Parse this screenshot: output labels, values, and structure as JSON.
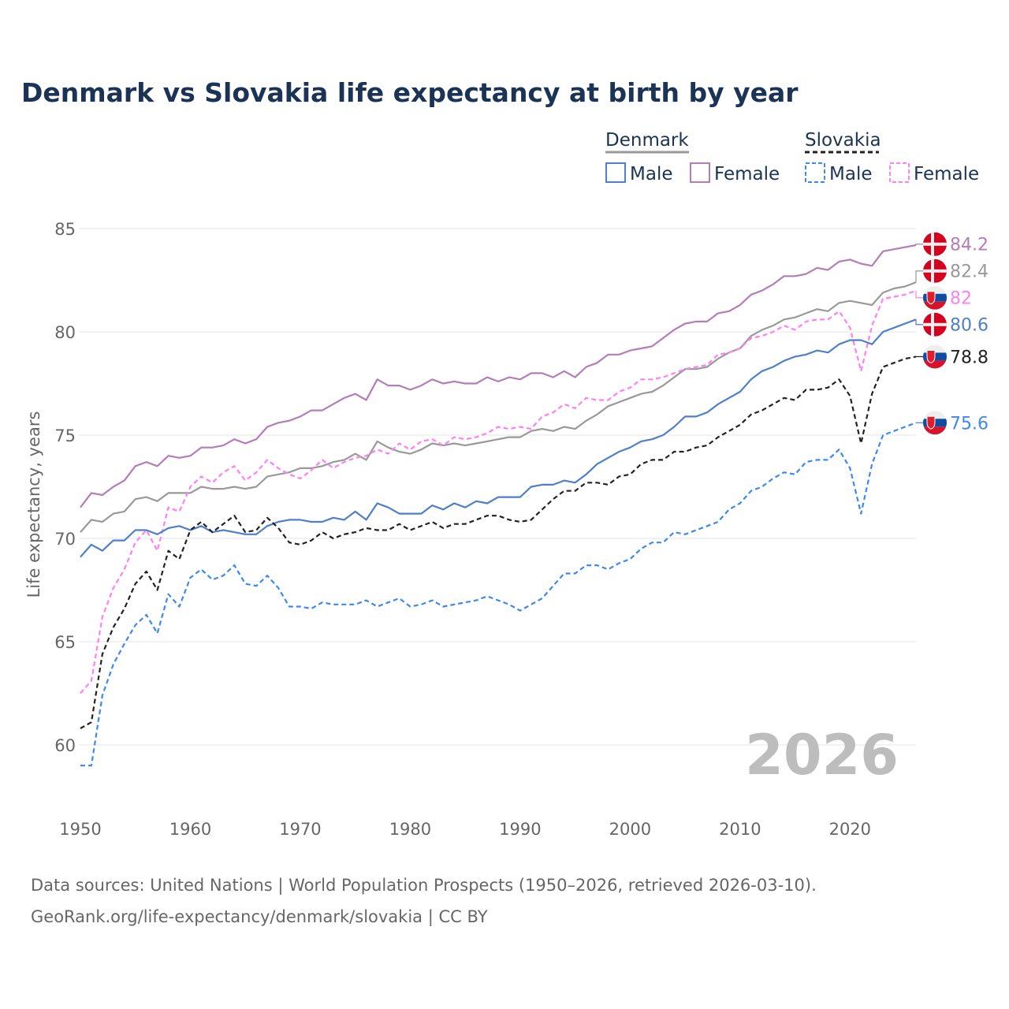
{
  "chart_data": {
    "type": "line",
    "title": "Denmark vs Slovakia life expectancy at birth by year",
    "xlabel": "",
    "ylabel": "Life expectancy, years",
    "xlim": [
      1950,
      2026
    ],
    "ylim": [
      58,
      87
    ],
    "x_ticks": [
      1950,
      1960,
      1970,
      1980,
      1990,
      2000,
      2010,
      2020
    ],
    "y_ticks": [
      60,
      65,
      70,
      75,
      80,
      85
    ],
    "grid": true,
    "legend_placement": "top-right",
    "legend": {
      "groups": [
        {
          "name": "Denmark",
          "items": [
            "Male",
            "Female"
          ]
        },
        {
          "name": "Slovakia",
          "items": [
            "Male",
            "Female"
          ]
        }
      ]
    },
    "year_watermark": "2026",
    "x_start": 1950,
    "series": [
      {
        "name": "Denmark Female",
        "country": "Denmark",
        "color": "#b47cb8",
        "dashed": false,
        "end_label": "84.2",
        "values": [
          71.5,
          72.2,
          72.1,
          72.5,
          72.8,
          73.5,
          73.7,
          73.5,
          74.0,
          73.9,
          74.0,
          74.4,
          74.4,
          74.5,
          74.8,
          74.6,
          74.8,
          75.4,
          75.6,
          75.7,
          75.9,
          76.2,
          76.2,
          76.5,
          76.8,
          77.0,
          76.7,
          77.7,
          77.4,
          77.4,
          77.2,
          77.4,
          77.7,
          77.5,
          77.6,
          77.5,
          77.5,
          77.8,
          77.6,
          77.8,
          77.7,
          78.0,
          78.0,
          77.8,
          78.1,
          77.8,
          78.3,
          78.5,
          78.9,
          78.9,
          79.1,
          79.2,
          79.3,
          79.7,
          80.1,
          80.4,
          80.5,
          80.5,
          80.9,
          81.0,
          81.3,
          81.8,
          82.0,
          82.3,
          82.7,
          82.7,
          82.8,
          83.1,
          83.0,
          83.4,
          83.5,
          83.3,
          83.2,
          83.9,
          84.0,
          84.1,
          84.2
        ]
      },
      {
        "name": "Denmark",
        "country": "Denmark",
        "color": "#999999",
        "dashed": false,
        "end_label": "82.4",
        "values": [
          70.3,
          70.9,
          70.8,
          71.2,
          71.3,
          71.9,
          72.0,
          71.8,
          72.2,
          72.2,
          72.2,
          72.5,
          72.4,
          72.4,
          72.5,
          72.4,
          72.5,
          73.0,
          73.1,
          73.2,
          73.4,
          73.4,
          73.5,
          73.7,
          73.8,
          74.1,
          73.8,
          74.7,
          74.4,
          74.2,
          74.1,
          74.3,
          74.6,
          74.5,
          74.6,
          74.5,
          74.6,
          74.7,
          74.8,
          74.9,
          74.9,
          75.2,
          75.3,
          75.2,
          75.4,
          75.3,
          75.7,
          76.0,
          76.4,
          76.6,
          76.8,
          77.0,
          77.1,
          77.4,
          77.8,
          78.2,
          78.2,
          78.3,
          78.7,
          79.0,
          79.2,
          79.8,
          80.1,
          80.3,
          80.6,
          80.7,
          80.9,
          81.1,
          81.0,
          81.4,
          81.5,
          81.4,
          81.3,
          81.9,
          82.1,
          82.2,
          82.4
        ]
      },
      {
        "name": "Slovakia Female",
        "country": "Slovakia",
        "color": "#ff80f2",
        "dashed": true,
        "end_label": "82",
        "values": [
          62.5,
          63.1,
          66.2,
          67.6,
          68.5,
          69.8,
          70.4,
          69.4,
          71.5,
          71.3,
          72.5,
          73.0,
          72.7,
          73.2,
          73.5,
          72.8,
          73.2,
          73.8,
          73.4,
          73.1,
          72.9,
          73.3,
          73.8,
          73.4,
          73.7,
          73.9,
          74.0,
          74.3,
          74.1,
          74.6,
          74.3,
          74.7,
          74.8,
          74.5,
          74.9,
          74.8,
          74.9,
          75.1,
          75.4,
          75.3,
          75.4,
          75.3,
          75.9,
          76.1,
          76.5,
          76.3,
          76.8,
          76.7,
          76.7,
          77.1,
          77.3,
          77.7,
          77.7,
          77.8,
          78.0,
          78.2,
          78.3,
          78.4,
          78.9,
          79.0,
          79.2,
          79.7,
          79.8,
          80.0,
          80.3,
          80.1,
          80.5,
          80.6,
          80.6,
          81.0,
          80.2,
          78.1,
          80.3,
          81.6,
          81.7,
          81.8,
          82.0
        ]
      },
      {
        "name": "Denmark Male",
        "country": "Denmark",
        "color": "#4e7fcc",
        "dashed": false,
        "end_label": "80.6",
        "values": [
          69.1,
          69.7,
          69.4,
          69.9,
          69.9,
          70.4,
          70.4,
          70.2,
          70.5,
          70.6,
          70.4,
          70.6,
          70.3,
          70.4,
          70.3,
          70.2,
          70.2,
          70.6,
          70.8,
          70.9,
          70.9,
          70.8,
          70.8,
          71.0,
          70.9,
          71.3,
          70.9,
          71.7,
          71.5,
          71.2,
          71.2,
          71.2,
          71.6,
          71.4,
          71.7,
          71.5,
          71.8,
          71.7,
          72.0,
          72.0,
          72.0,
          72.5,
          72.6,
          72.6,
          72.8,
          72.7,
          73.1,
          73.6,
          73.9,
          74.2,
          74.4,
          74.7,
          74.8,
          75.0,
          75.4,
          75.9,
          75.9,
          76.1,
          76.5,
          76.8,
          77.1,
          77.7,
          78.1,
          78.3,
          78.6,
          78.8,
          78.9,
          79.1,
          79.0,
          79.4,
          79.6,
          79.6,
          79.4,
          80.0,
          80.2,
          80.4,
          80.6
        ]
      },
      {
        "name": "Slovakia",
        "country": "Slovakia",
        "color": "#222222",
        "dashed": true,
        "end_label": "78.8",
        "values": [
          60.8,
          61.1,
          64.4,
          65.7,
          66.6,
          67.8,
          68.4,
          67.5,
          69.4,
          69.0,
          70.4,
          70.8,
          70.3,
          70.7,
          71.1,
          70.3,
          70.4,
          71.0,
          70.5,
          69.8,
          69.7,
          69.9,
          70.3,
          70.0,
          70.2,
          70.3,
          70.5,
          70.4,
          70.4,
          70.7,
          70.4,
          70.6,
          70.8,
          70.5,
          70.7,
          70.7,
          70.9,
          71.1,
          71.1,
          70.9,
          70.8,
          70.9,
          71.4,
          71.9,
          72.3,
          72.3,
          72.7,
          72.7,
          72.6,
          73.0,
          73.1,
          73.6,
          73.8,
          73.8,
          74.2,
          74.2,
          74.4,
          74.5,
          74.9,
          75.2,
          75.5,
          76.0,
          76.2,
          76.5,
          76.8,
          76.7,
          77.2,
          77.2,
          77.3,
          77.7,
          76.9,
          74.6,
          77.0,
          78.3,
          78.5,
          78.7,
          78.8
        ]
      },
      {
        "name": "Slovakia Male",
        "country": "Slovakia",
        "color": "#3d88f2",
        "dashed": true,
        "end_label": "75.6",
        "values": [
          59.0,
          59.0,
          62.4,
          63.9,
          64.9,
          65.8,
          66.3,
          65.4,
          67.3,
          66.7,
          68.1,
          68.5,
          68.0,
          68.2,
          68.7,
          67.8,
          67.7,
          68.2,
          67.6,
          66.7,
          66.7,
          66.6,
          66.9,
          66.8,
          66.8,
          66.8,
          67.0,
          66.7,
          66.9,
          67.1,
          66.7,
          66.8,
          67.0,
          66.7,
          66.8,
          66.9,
          67.0,
          67.2,
          67.0,
          66.8,
          66.5,
          66.8,
          67.1,
          67.7,
          68.3,
          68.3,
          68.7,
          68.7,
          68.5,
          68.8,
          69.0,
          69.5,
          69.8,
          69.8,
          70.3,
          70.2,
          70.4,
          70.6,
          70.8,
          71.4,
          71.7,
          72.3,
          72.5,
          72.9,
          73.2,
          73.1,
          73.7,
          73.8,
          73.8,
          74.3,
          73.4,
          71.2,
          73.6,
          75.0,
          75.2,
          75.4,
          75.6
        ]
      }
    ]
  },
  "footer": {
    "line1": "Data sources: United Nations | World Population Prospects (1950–2026, retrieved 2026-03-10).",
    "line2": "GeoRank.org/life-expectancy/denmark/slovakia | CC BY"
  }
}
